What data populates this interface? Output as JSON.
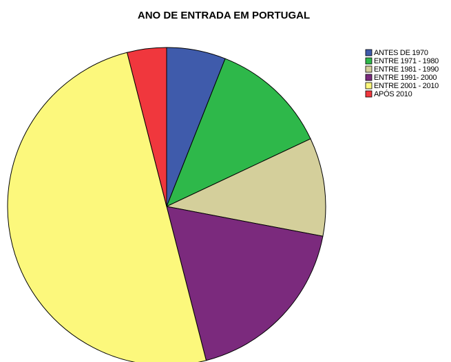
{
  "chart_data": {
    "type": "pie",
    "title": "ANO DE ENTRADA EM PORTUGAL",
    "categories": [
      "ANTES DE 1970",
      "ENTRE 1971 - 1980",
      "ENTRE 1981 - 1990",
      "ENTRE 1991- 2000",
      "ENTRE 2001 - 2010",
      "APÓS 2010"
    ],
    "values": [
      6,
      12,
      10,
      18,
      50,
      4
    ],
    "colors": [
      "#3f5bab",
      "#2eb84a",
      "#d4cf9b",
      "#7b2a7d",
      "#fcf87c",
      "#f0373d"
    ],
    "legend": "top-right"
  }
}
